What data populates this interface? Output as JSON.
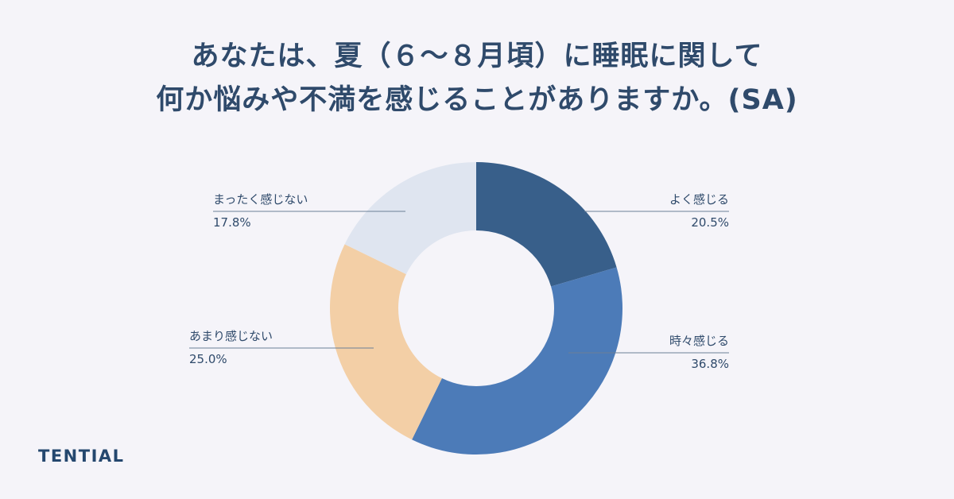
{
  "title": {
    "line1": "あなたは、夏（６～８月頃）に睡眠に関して",
    "line2": "何か悩みや不満を感じることがありますか。(SA)"
  },
  "brand": "TENTIAL",
  "chart_data": {
    "type": "pie",
    "donut": true,
    "title": "あなたは、夏（６～８月頃）に睡眠に関して 何か悩みや不満を感じることがありますか。(SA)",
    "start_angle_deg": 0,
    "direction": "clockwise",
    "slices": [
      {
        "label": "よく感じる",
        "value": 20.5,
        "value_label": "20.5%",
        "color": "#385f8a"
      },
      {
        "label": "時々感じる",
        "value": 36.8,
        "value_label": "36.8%",
        "color": "#4c7bb8"
      },
      {
        "label": "あまり感じない",
        "value": 25.0,
        "value_label": "25.0%",
        "color": "#f3cfa6"
      },
      {
        "label": "まったく感じない",
        "value": 17.8,
        "value_label": "17.8%",
        "color": "#dfe5f0"
      }
    ],
    "label_line_color": "#6b7f96"
  }
}
